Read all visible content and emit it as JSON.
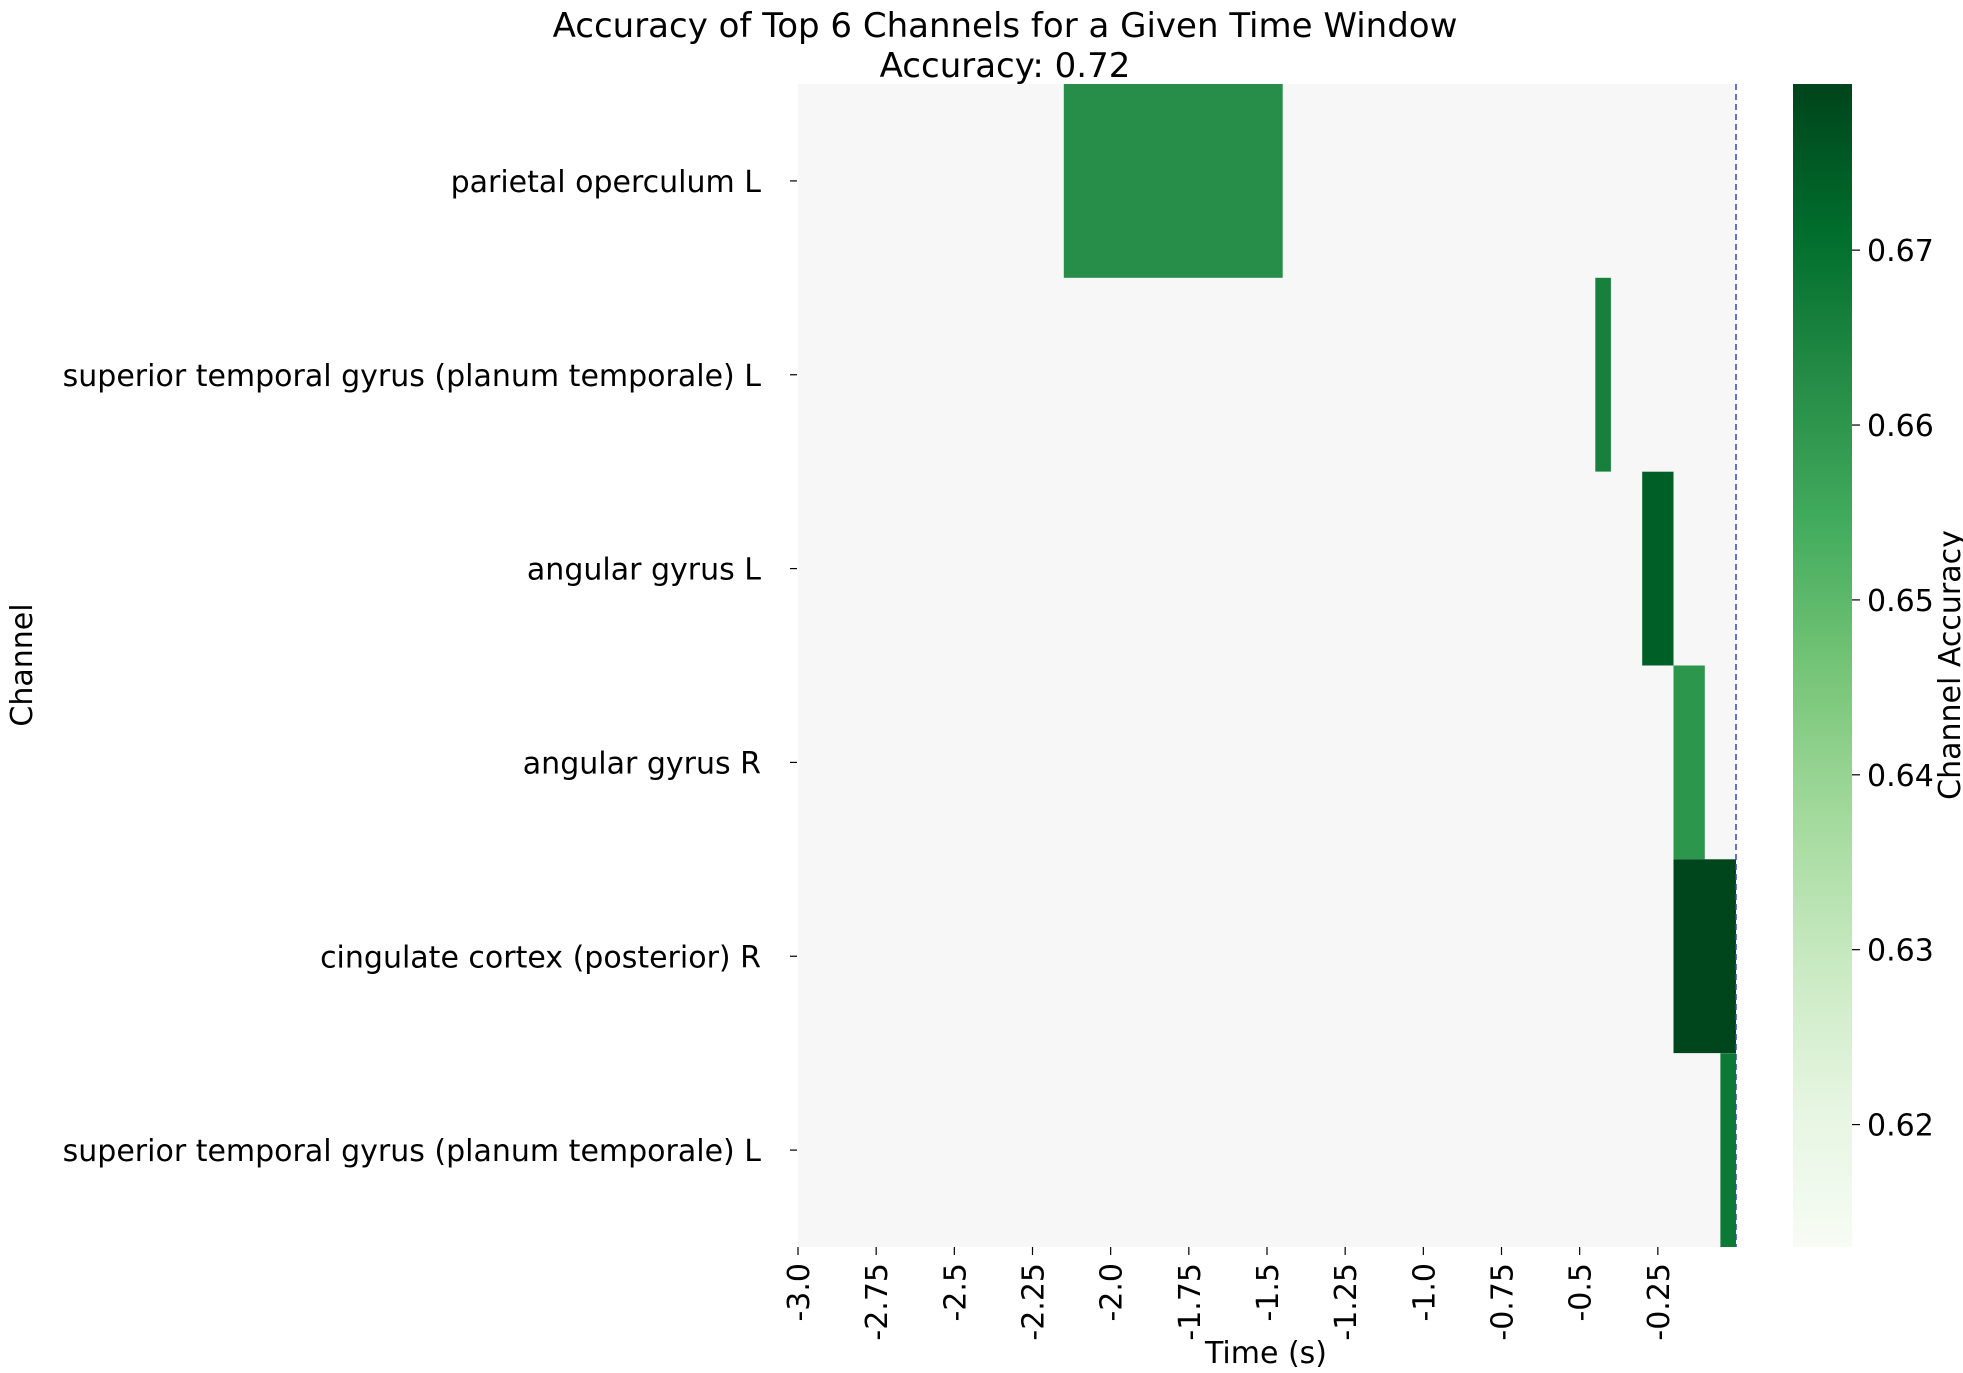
{
  "chart_data": {
    "type": "heatmap",
    "title": "Accuracy of Top 6 Channels for a Given Time Window",
    "subtitle": "Accuracy: 0.72",
    "xlabel": "Time (s)",
    "ylabel": "Channel",
    "colorbar_label": "Channel Accuracy",
    "colormap": "Greens",
    "background_color": "#f7f7f7",
    "marker_line_color": "#3344cc",
    "xlim": [
      -3.0,
      0.0
    ],
    "marker_line_x": 0.0,
    "x_ticks": [
      -3.0,
      -2.75,
      -2.5,
      -2.25,
      -2.0,
      -1.75,
      -1.5,
      -1.25,
      -1.0,
      -0.75,
      -0.5,
      -0.25
    ],
    "x_tick_labels": [
      "-3.0",
      "-2.75",
      "-2.5",
      "-2.25",
      "-2.0",
      "-1.75",
      "-1.5",
      "-1.25",
      "-1.0",
      "-0.75",
      "-0.5",
      "-0.25"
    ],
    "channels": [
      "parietal operculum L",
      "superior temporal gyrus (planum temporale) L",
      "angular gyrus L",
      "angular gyrus R",
      "cingulate cortex (posterior) R",
      "superior temporal gyrus (planum temporale) L"
    ],
    "cells": [
      {
        "row": 0,
        "x_start": -2.15,
        "x_end": -1.45,
        "value": 0.662
      },
      {
        "row": 1,
        "x_start": -0.45,
        "x_end": -0.4,
        "value": 0.666
      },
      {
        "row": 2,
        "x_start": -0.3,
        "x_end": -0.2,
        "value": 0.674
      },
      {
        "row": 3,
        "x_start": -0.2,
        "x_end": -0.1,
        "value": 0.66
      },
      {
        "row": 4,
        "x_start": -0.2,
        "x_end": 0.0,
        "value": 0.679
      },
      {
        "row": 5,
        "x_start": -0.05,
        "x_end": 0.0,
        "value": 0.668
      }
    ],
    "colorbar": {
      "vmin": 0.613,
      "vmax": 0.6795,
      "ticks": [
        0.62,
        0.63,
        0.64,
        0.65,
        0.66,
        0.67
      ],
      "tick_labels": [
        "0.62",
        "0.63",
        "0.64",
        "0.65",
        "0.66",
        "0.67"
      ]
    }
  }
}
